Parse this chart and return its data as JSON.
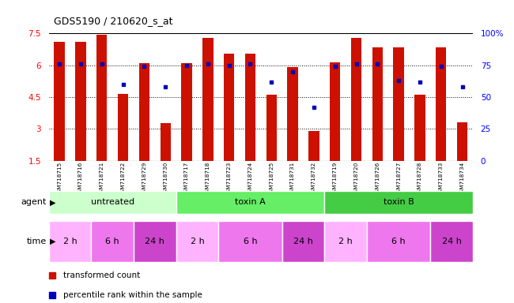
{
  "title": "GDS5190 / 210620_s_at",
  "samples": [
    "GSM718715",
    "GSM718716",
    "GSM718721",
    "GSM718722",
    "GSM718729",
    "GSM718730",
    "GSM718717",
    "GSM718718",
    "GSM718723",
    "GSM718724",
    "GSM718725",
    "GSM718731",
    "GSM718732",
    "GSM718719",
    "GSM718720",
    "GSM718726",
    "GSM718727",
    "GSM718728",
    "GSM718733",
    "GSM718734"
  ],
  "bar_values": [
    7.1,
    7.1,
    7.45,
    4.65,
    6.1,
    3.25,
    6.1,
    7.3,
    6.55,
    6.55,
    4.6,
    5.9,
    2.9,
    6.15,
    7.3,
    6.85,
    6.85,
    4.6,
    6.85,
    3.3
  ],
  "dot_percentiles": [
    76,
    76,
    76,
    60,
    74,
    58,
    75,
    76,
    75,
    76,
    62,
    70,
    42,
    74,
    76,
    76,
    63,
    62,
    74,
    58
  ],
  "ylim_left": [
    1.5,
    7.5
  ],
  "ylim_right": [
    0,
    100
  ],
  "yticks_left": [
    1.5,
    3.0,
    4.5,
    6.0,
    7.5
  ],
  "ytick_labels_left": [
    "1.5",
    "3",
    "4.5",
    "6",
    "7.5"
  ],
  "yticks_right": [
    0,
    25,
    50,
    75,
    100
  ],
  "ytick_labels_right": [
    "0",
    "25",
    "50",
    "75",
    "100%"
  ],
  "bar_color": "#CC1100",
  "dot_color": "#0000BB",
  "grid_lines": [
    3.0,
    4.5,
    6.0
  ],
  "agent_groups": [
    {
      "label": "untreated",
      "start": 0,
      "end": 6,
      "color": "#CCFFCC"
    },
    {
      "label": "toxin A",
      "start": 6,
      "end": 13,
      "color": "#66EE66"
    },
    {
      "label": "toxin B",
      "start": 13,
      "end": 20,
      "color": "#44CC44"
    }
  ],
  "time_groups": [
    {
      "label": "2 h",
      "start": 0,
      "end": 2,
      "color": "#FFB3FF"
    },
    {
      "label": "6 h",
      "start": 2,
      "end": 4,
      "color": "#EE77EE"
    },
    {
      "label": "24 h",
      "start": 4,
      "end": 6,
      "color": "#CC44CC"
    },
    {
      "label": "2 h",
      "start": 6,
      "end": 8,
      "color": "#FFB3FF"
    },
    {
      "label": "6 h",
      "start": 8,
      "end": 11,
      "color": "#EE77EE"
    },
    {
      "label": "24 h",
      "start": 11,
      "end": 13,
      "color": "#CC44CC"
    },
    {
      "label": "2 h",
      "start": 13,
      "end": 15,
      "color": "#FFB3FF"
    },
    {
      "label": "6 h",
      "start": 15,
      "end": 18,
      "color": "#EE77EE"
    },
    {
      "label": "24 h",
      "start": 18,
      "end": 20,
      "color": "#CC44CC"
    }
  ],
  "legend_items": [
    {
      "label": "transformed count",
      "color": "#CC1100"
    },
    {
      "label": "percentile rank within the sample",
      "color": "#0000BB"
    }
  ],
  "bar_width": 0.5
}
